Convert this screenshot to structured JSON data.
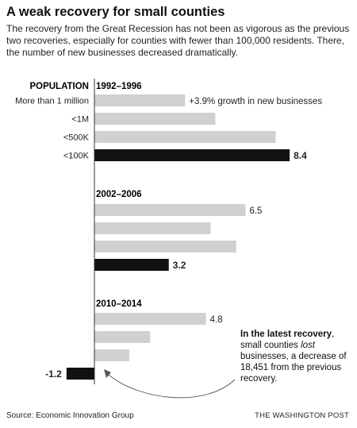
{
  "headline": "A weak recovery for small counties",
  "subhead": "The recovery from the Great Recession has not been as vigorous as the previous two recoveries, especially for counties with fewer than 100,000 residents. There, the number of new businesses decreased dramatically.",
  "source": "Source: Economic Innovation Group",
  "credit": "THE WASHINGTON POST",
  "annotation": {
    "lead": "In the latest recovery",
    "text_1": ", small counties ",
    "emphasis": "lost",
    "text_2": " businesses, a decrease of 18,451 from the previous recovery."
  },
  "chart_data": {
    "type": "bar",
    "orientation": "horizontal",
    "category_header": "POPULATION",
    "categories": [
      "More than 1 million",
      "<1M",
      "<500K",
      "<100K"
    ],
    "series": [
      {
        "name": "1992–1996",
        "values": [
          3.9,
          5.2,
          7.8,
          8.4
        ],
        "labels": [
          "+3.9% growth in new businesses",
          "",
          "",
          "8.4"
        ]
      },
      {
        "name": "2002–2006",
        "values": [
          6.5,
          5.0,
          6.1,
          3.2
        ],
        "labels": [
          "6.5",
          "",
          "",
          "3.2"
        ]
      },
      {
        "name": "2010–2014",
        "values": [
          4.8,
          2.4,
          1.5,
          -1.2
        ],
        "labels": [
          "4.8",
          "",
          "",
          "-1.2"
        ]
      }
    ],
    "highlight_category": "<100K",
    "colors": {
      "bar": "#d0d0d0",
      "highlight": "#111111"
    },
    "xlim": [
      -1.2,
      8.4
    ]
  }
}
